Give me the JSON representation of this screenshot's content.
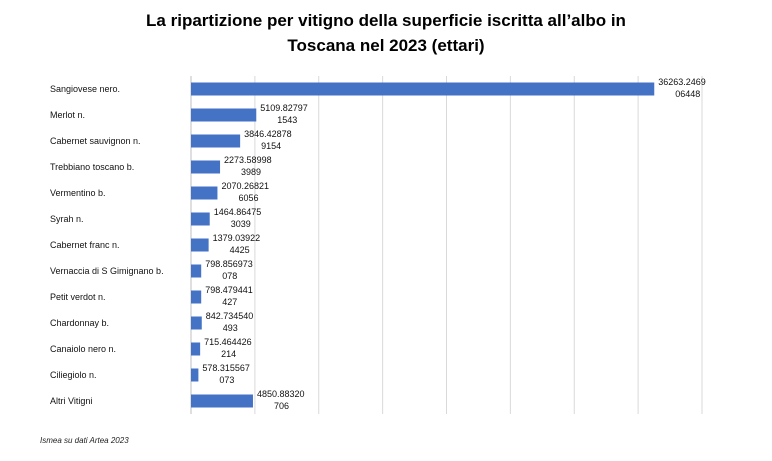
{
  "title_line1": "La ripartizione per vitigno della superficie iscritta all’albo in",
  "title_line2": "Toscana nel 2023 (ettari)",
  "source": "Ismea su dati Artea 2023",
  "colors": {
    "bar": "#4472C4",
    "grid": "#d9d9d9",
    "axis": "#bfbfbf"
  },
  "chart_data": {
    "type": "bar",
    "orientation": "horizontal",
    "title": "La ripartizione per vitigno della superficie iscritta all’albo in Toscana nel 2023 (ettari)",
    "xlim": [
      0,
      40000
    ],
    "grid": true,
    "categories": [
      "Sangiovese nero.",
      "Merlot n.",
      "Cabernet sauvignon n.",
      "Trebbiano toscano b.",
      "Vermentino b.",
      "Syrah n.",
      "Cabernet franc n.",
      "Vernaccia di S Gimignano b.",
      "Petit verdot n.",
      "Chardonnay b.",
      "Canaiolo nero n.",
      "Ciliegiolo n.",
      "Altri Vitigni"
    ],
    "values": [
      36263.246906448,
      5109.827971543,
      3846.428789154,
      2273.589983989,
      2070.268216056,
      1464.864753039,
      1379.039224425,
      798.856973078,
      798.479441427,
      842.734540493,
      715.464426214,
      578.315567073,
      4850.88320706
    ],
    "value_labels": [
      [
        "36263.2469",
        "06448"
      ],
      [
        "5109.82797",
        "1543"
      ],
      [
        "3846.42878",
        "9154"
      ],
      [
        "2273.58998",
        "3989"
      ],
      [
        "2070.26821",
        "6056"
      ],
      [
        "1464.86475",
        "3039"
      ],
      [
        "1379.03922",
        "4425"
      ],
      [
        "798.856973",
        "078"
      ],
      [
        "798.479441",
        "427"
      ],
      [
        "842.734540",
        "493"
      ],
      [
        "715.464426",
        "214"
      ],
      [
        "578.315567",
        "073"
      ],
      [
        "4850.88320",
        "706"
      ]
    ]
  }
}
